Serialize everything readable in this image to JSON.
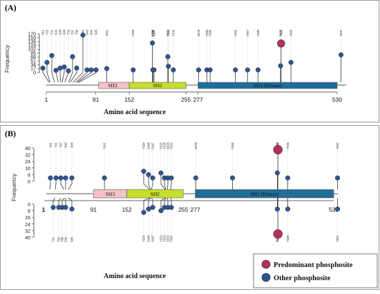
{
  "colors": {
    "predominant": "#b03060",
    "other": "#2f5597",
    "sh3": "#f4c2c8",
    "sh2": "#c8de2c",
    "sh1": "#1f6e9a",
    "sh1_text": "#ffffff"
  },
  "panel_a": {
    "label": "(A)",
    "y_axis_label": "Frequency",
    "y_ticks": [
      "170",
      "153",
      "136",
      "119",
      "102",
      "85",
      "68",
      "51",
      "34",
      "17",
      "0"
    ],
    "x_axis_label": "Amino acid  sequence",
    "domains": [
      {
        "label": "SH3",
        "start": "91",
        "end": "152"
      },
      {
        "label": "SH2",
        "start": "152",
        "end": "255"
      },
      {
        "label": "SH1 (Kinase)",
        "start": "277",
        "end": "530"
      }
    ],
    "position_numbers": [
      "1",
      "91",
      "152",
      "255",
      "277",
      "530"
    ]
  },
  "panel_b": {
    "label": "(B)",
    "y_axis_label": "Frequency",
    "y_ticks_top": [
      "40",
      "32",
      "24",
      "16",
      "8",
      "0"
    ],
    "y_ticks_bottom": [
      "0",
      "8",
      "16",
      "24",
      "32",
      "40"
    ],
    "x_axis_label": "Amino acid  sequence",
    "domains": [
      {
        "label": "SH3",
        "start": "91",
        "end": "152"
      },
      {
        "label": "SH2",
        "start": "152",
        "end": "255"
      },
      {
        "label": "SH1 (Kinase)",
        "start": "277",
        "end": "530"
      }
    ],
    "position_numbers": [
      "1",
      "91",
      "152",
      "255",
      "277",
      "530"
    ]
  },
  "legend": {
    "predominant": "Predominant phosphosite",
    "other": "Other phosphosite"
  },
  "chart_data": [
    {
      "type": "lollipop",
      "panel": "A",
      "protein_length": 530,
      "x_range": [
        1,
        530
      ],
      "ylim": [
        0,
        170
      ],
      "ylabel": "Frequency",
      "xlabel": "Amino acid  sequence",
      "sites": [
        {
          "name": "S11",
          "pos": 11,
          "value": 20,
          "kind": "other"
        },
        {
          "name": "Y15",
          "pos": 15,
          "value": 45,
          "kind": "other"
        },
        {
          "name": "T21",
          "pos": 21,
          "value": 75,
          "kind": "other"
        },
        {
          "name": "S26",
          "pos": 26,
          "value": 10,
          "kind": "other"
        },
        {
          "name": "S28",
          "pos": 28,
          "value": 20,
          "kind": "other"
        },
        {
          "name": "S29",
          "pos": 29,
          "value": 25,
          "kind": "other"
        },
        {
          "name": "T32",
          "pos": 32,
          "value": 8,
          "kind": "other"
        },
        {
          "name": "T37",
          "pos": 37,
          "value": 70,
          "kind": "other"
        },
        {
          "name": "T38",
          "pos": 38,
          "value": 20,
          "kind": "other"
        },
        {
          "name": "S40",
          "pos": 40,
          "value": 165,
          "kind": "other"
        },
        {
          "name": "S43",
          "pos": 43,
          "value": 12,
          "kind": "other"
        },
        {
          "name": "S44",
          "pos": 44,
          "value": 12,
          "kind": "other"
        },
        {
          "name": "S45",
          "pos": 45,
          "value": 12,
          "kind": "other"
        },
        {
          "name": "S111",
          "pos": 111,
          "value": 18,
          "kind": "other"
        },
        {
          "name": "Y159",
          "pos": 159,
          "value": 12,
          "kind": "other"
        },
        {
          "name": "Y194",
          "pos": 194,
          "value": 130,
          "kind": "other"
        },
        {
          "name": "S195",
          "pos": 195,
          "value": 12,
          "kind": "other"
        },
        {
          "name": "S197",
          "pos": 197,
          "value": 12,
          "kind": "other"
        },
        {
          "name": "Y222",
          "pos": 222,
          "value": 70,
          "kind": "other"
        },
        {
          "name": "Y223",
          "pos": 223,
          "value": 28,
          "kind": "other"
        },
        {
          "name": "T232",
          "pos": 232,
          "value": 12,
          "kind": "other"
        },
        {
          "name": "S278",
          "pos": 278,
          "value": 12,
          "kind": "other"
        },
        {
          "name": "T293",
          "pos": 293,
          "value": 12,
          "kind": "other"
        },
        {
          "name": "T299",
          "pos": 299,
          "value": 12,
          "kind": "other"
        },
        {
          "name": "Y345",
          "pos": 345,
          "value": 12,
          "kind": "other"
        },
        {
          "name": "Y367",
          "pos": 367,
          "value": 12,
          "kind": "other"
        },
        {
          "name": "Y386",
          "pos": 386,
          "value": 12,
          "kind": "other"
        },
        {
          "name": "Y428",
          "pos": 428,
          "value": 128,
          "kind": "predominant"
        },
        {
          "name": "T427",
          "pos": 427,
          "value": 30,
          "kind": "other"
        },
        {
          "name": "Y446",
          "pos": 446,
          "value": 45,
          "kind": "other"
        },
        {
          "name": "Y537",
          "pos": 537,
          "value": 78,
          "kind": "other"
        }
      ]
    },
    {
      "type": "lollipop",
      "panel": "B",
      "protein_length": 530,
      "x_range": [
        1,
        530
      ],
      "ylim": [
        -40,
        40
      ],
      "ylabel": "Frequency",
      "xlabel": "Amino acid  sequence",
      "sites_top": [
        {
          "name": "S11",
          "pos": 11,
          "value": 4,
          "kind": "other"
        },
        {
          "name": "T21",
          "pos": 21,
          "value": 4,
          "kind": "other"
        },
        {
          "name": "T37",
          "pos": 37,
          "value": 4,
          "kind": "other"
        },
        {
          "name": "S40",
          "pos": 40,
          "value": 4,
          "kind": "other"
        },
        {
          "name": "S45",
          "pos": 45,
          "value": 4,
          "kind": "other"
        },
        {
          "name": "S111",
          "pos": 111,
          "value": 4,
          "kind": "other"
        },
        {
          "name": "Y194",
          "pos": 194,
          "value": 12,
          "kind": "other"
        },
        {
          "name": "S195",
          "pos": 195,
          "value": 8,
          "kind": "other"
        },
        {
          "name": "S197",
          "pos": 197,
          "value": 4,
          "kind": "other"
        },
        {
          "name": "Y222",
          "pos": 222,
          "value": 10,
          "kind": "other"
        },
        {
          "name": "Y223",
          "pos": 223,
          "value": 4,
          "kind": "other"
        },
        {
          "name": "S226",
          "pos": 226,
          "value": 4,
          "kind": "other"
        },
        {
          "name": "T232",
          "pos": 232,
          "value": 4,
          "kind": "other"
        },
        {
          "name": "S278",
          "pos": 278,
          "value": 4,
          "kind": "other"
        },
        {
          "name": "Y345",
          "pos": 345,
          "value": 4,
          "kind": "other"
        },
        {
          "name": "Y428",
          "pos": 428,
          "value": 38,
          "kind": "predominant"
        },
        {
          "name": "T427",
          "pos": 427,
          "value": 10,
          "kind": "other"
        },
        {
          "name": "Y446",
          "pos": 446,
          "value": 4,
          "kind": "other"
        },
        {
          "name": "Y537",
          "pos": 537,
          "value": 4,
          "kind": "other"
        }
      ],
      "sites_bottom": [
        {
          "name": "T21",
          "pos": 21,
          "value": 4,
          "kind": "other"
        },
        {
          "name": "T32",
          "pos": 32,
          "value": 4,
          "kind": "other"
        },
        {
          "name": "T38",
          "pos": 38,
          "value": 4,
          "kind": "other"
        },
        {
          "name": "S40",
          "pos": 40,
          "value": 4,
          "kind": "other"
        },
        {
          "name": "S45",
          "pos": 45,
          "value": 6,
          "kind": "other"
        },
        {
          "name": "Y194",
          "pos": 194,
          "value": 10,
          "kind": "other"
        },
        {
          "name": "S195",
          "pos": 195,
          "value": 6,
          "kind": "other"
        },
        {
          "name": "S197",
          "pos": 197,
          "value": 4,
          "kind": "other"
        },
        {
          "name": "Y222",
          "pos": 222,
          "value": 8,
          "kind": "other"
        },
        {
          "name": "Y223",
          "pos": 223,
          "value": 4,
          "kind": "other"
        },
        {
          "name": "S226",
          "pos": 226,
          "value": 4,
          "kind": "other"
        },
        {
          "name": "T232",
          "pos": 232,
          "value": 4,
          "kind": "other"
        },
        {
          "name": "Y428",
          "pos": 428,
          "value": 36,
          "kind": "predominant"
        },
        {
          "name": "T427",
          "pos": 427,
          "value": 6,
          "kind": "other"
        },
        {
          "name": "Y446",
          "pos": 446,
          "value": 6,
          "kind": "other"
        },
        {
          "name": "Y537",
          "pos": 537,
          "value": 6,
          "kind": "other"
        }
      ]
    }
  ]
}
